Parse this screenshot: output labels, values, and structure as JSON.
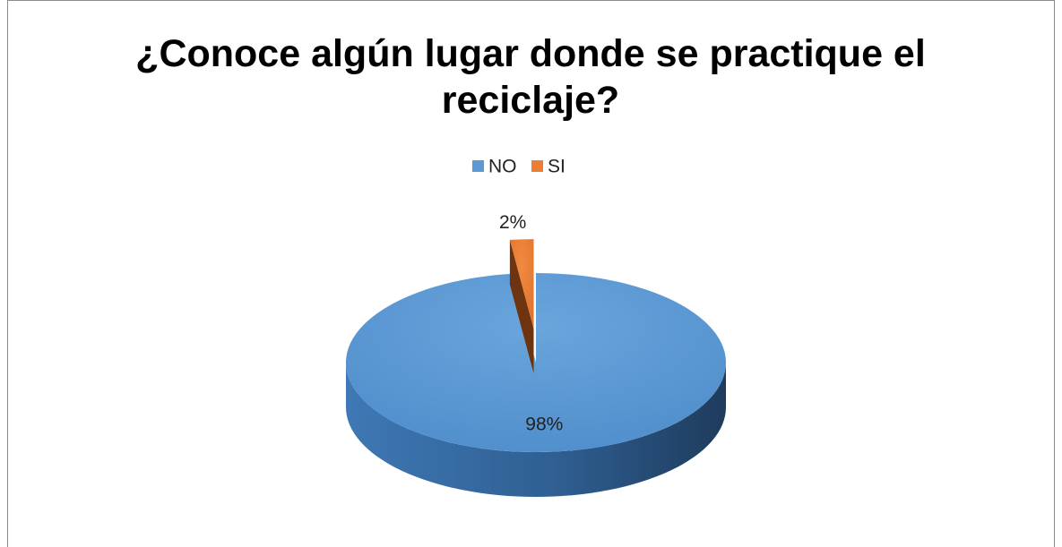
{
  "chart_data": {
    "type": "pie",
    "title": "¿Conoce algún lugar donde se practique el reciclaje?",
    "categories": [
      "NO",
      "SI"
    ],
    "values": [
      98,
      2
    ],
    "value_labels": [
      "98%",
      "2%"
    ],
    "colors": [
      "#5b9bd5",
      "#ed7d31"
    ],
    "explode": [
      false,
      true
    ],
    "legend": "top"
  }
}
